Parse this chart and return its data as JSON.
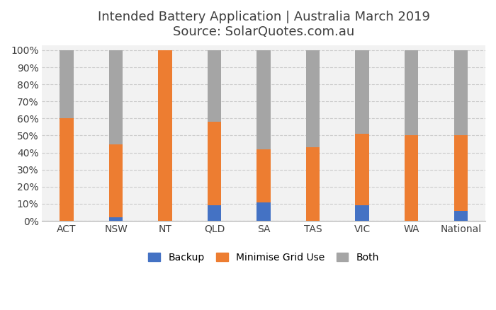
{
  "categories": [
    "ACT",
    "NSW",
    "NT",
    "QLD",
    "SA",
    "TAS",
    "VIC",
    "WA",
    "National"
  ],
  "backup": [
    0,
    2,
    0,
    9,
    11,
    0,
    9,
    0,
    6
  ],
  "minimise_grid": [
    60,
    43,
    100,
    49,
    31,
    43,
    42,
    50,
    44
  ],
  "both": [
    40,
    55,
    0,
    42,
    58,
    57,
    49,
    50,
    50
  ],
  "colors": {
    "backup": "#4472C4",
    "minimise_grid": "#ED7D31",
    "both": "#A5A5A5"
  },
  "title_line1": "Intended Battery Application | Australia March 2019",
  "title_line2": "Source: SolarQuotes.com.au",
  "ylabel_ticks": [
    "0%",
    "10%",
    "20%",
    "30%",
    "40%",
    "50%",
    "60%",
    "70%",
    "80%",
    "90%",
    "100%"
  ],
  "ytick_vals": [
    0,
    10,
    20,
    30,
    40,
    50,
    60,
    70,
    80,
    90,
    100
  ],
  "legend_labels": [
    "Backup",
    "Minimise Grid Use",
    "Both"
  ],
  "bar_width": 0.28,
  "figsize": [
    7.0,
    4.38
  ],
  "dpi": 100,
  "bg_color": "#F2F2F2",
  "title_color": "#404040",
  "tick_color": "#404040"
}
